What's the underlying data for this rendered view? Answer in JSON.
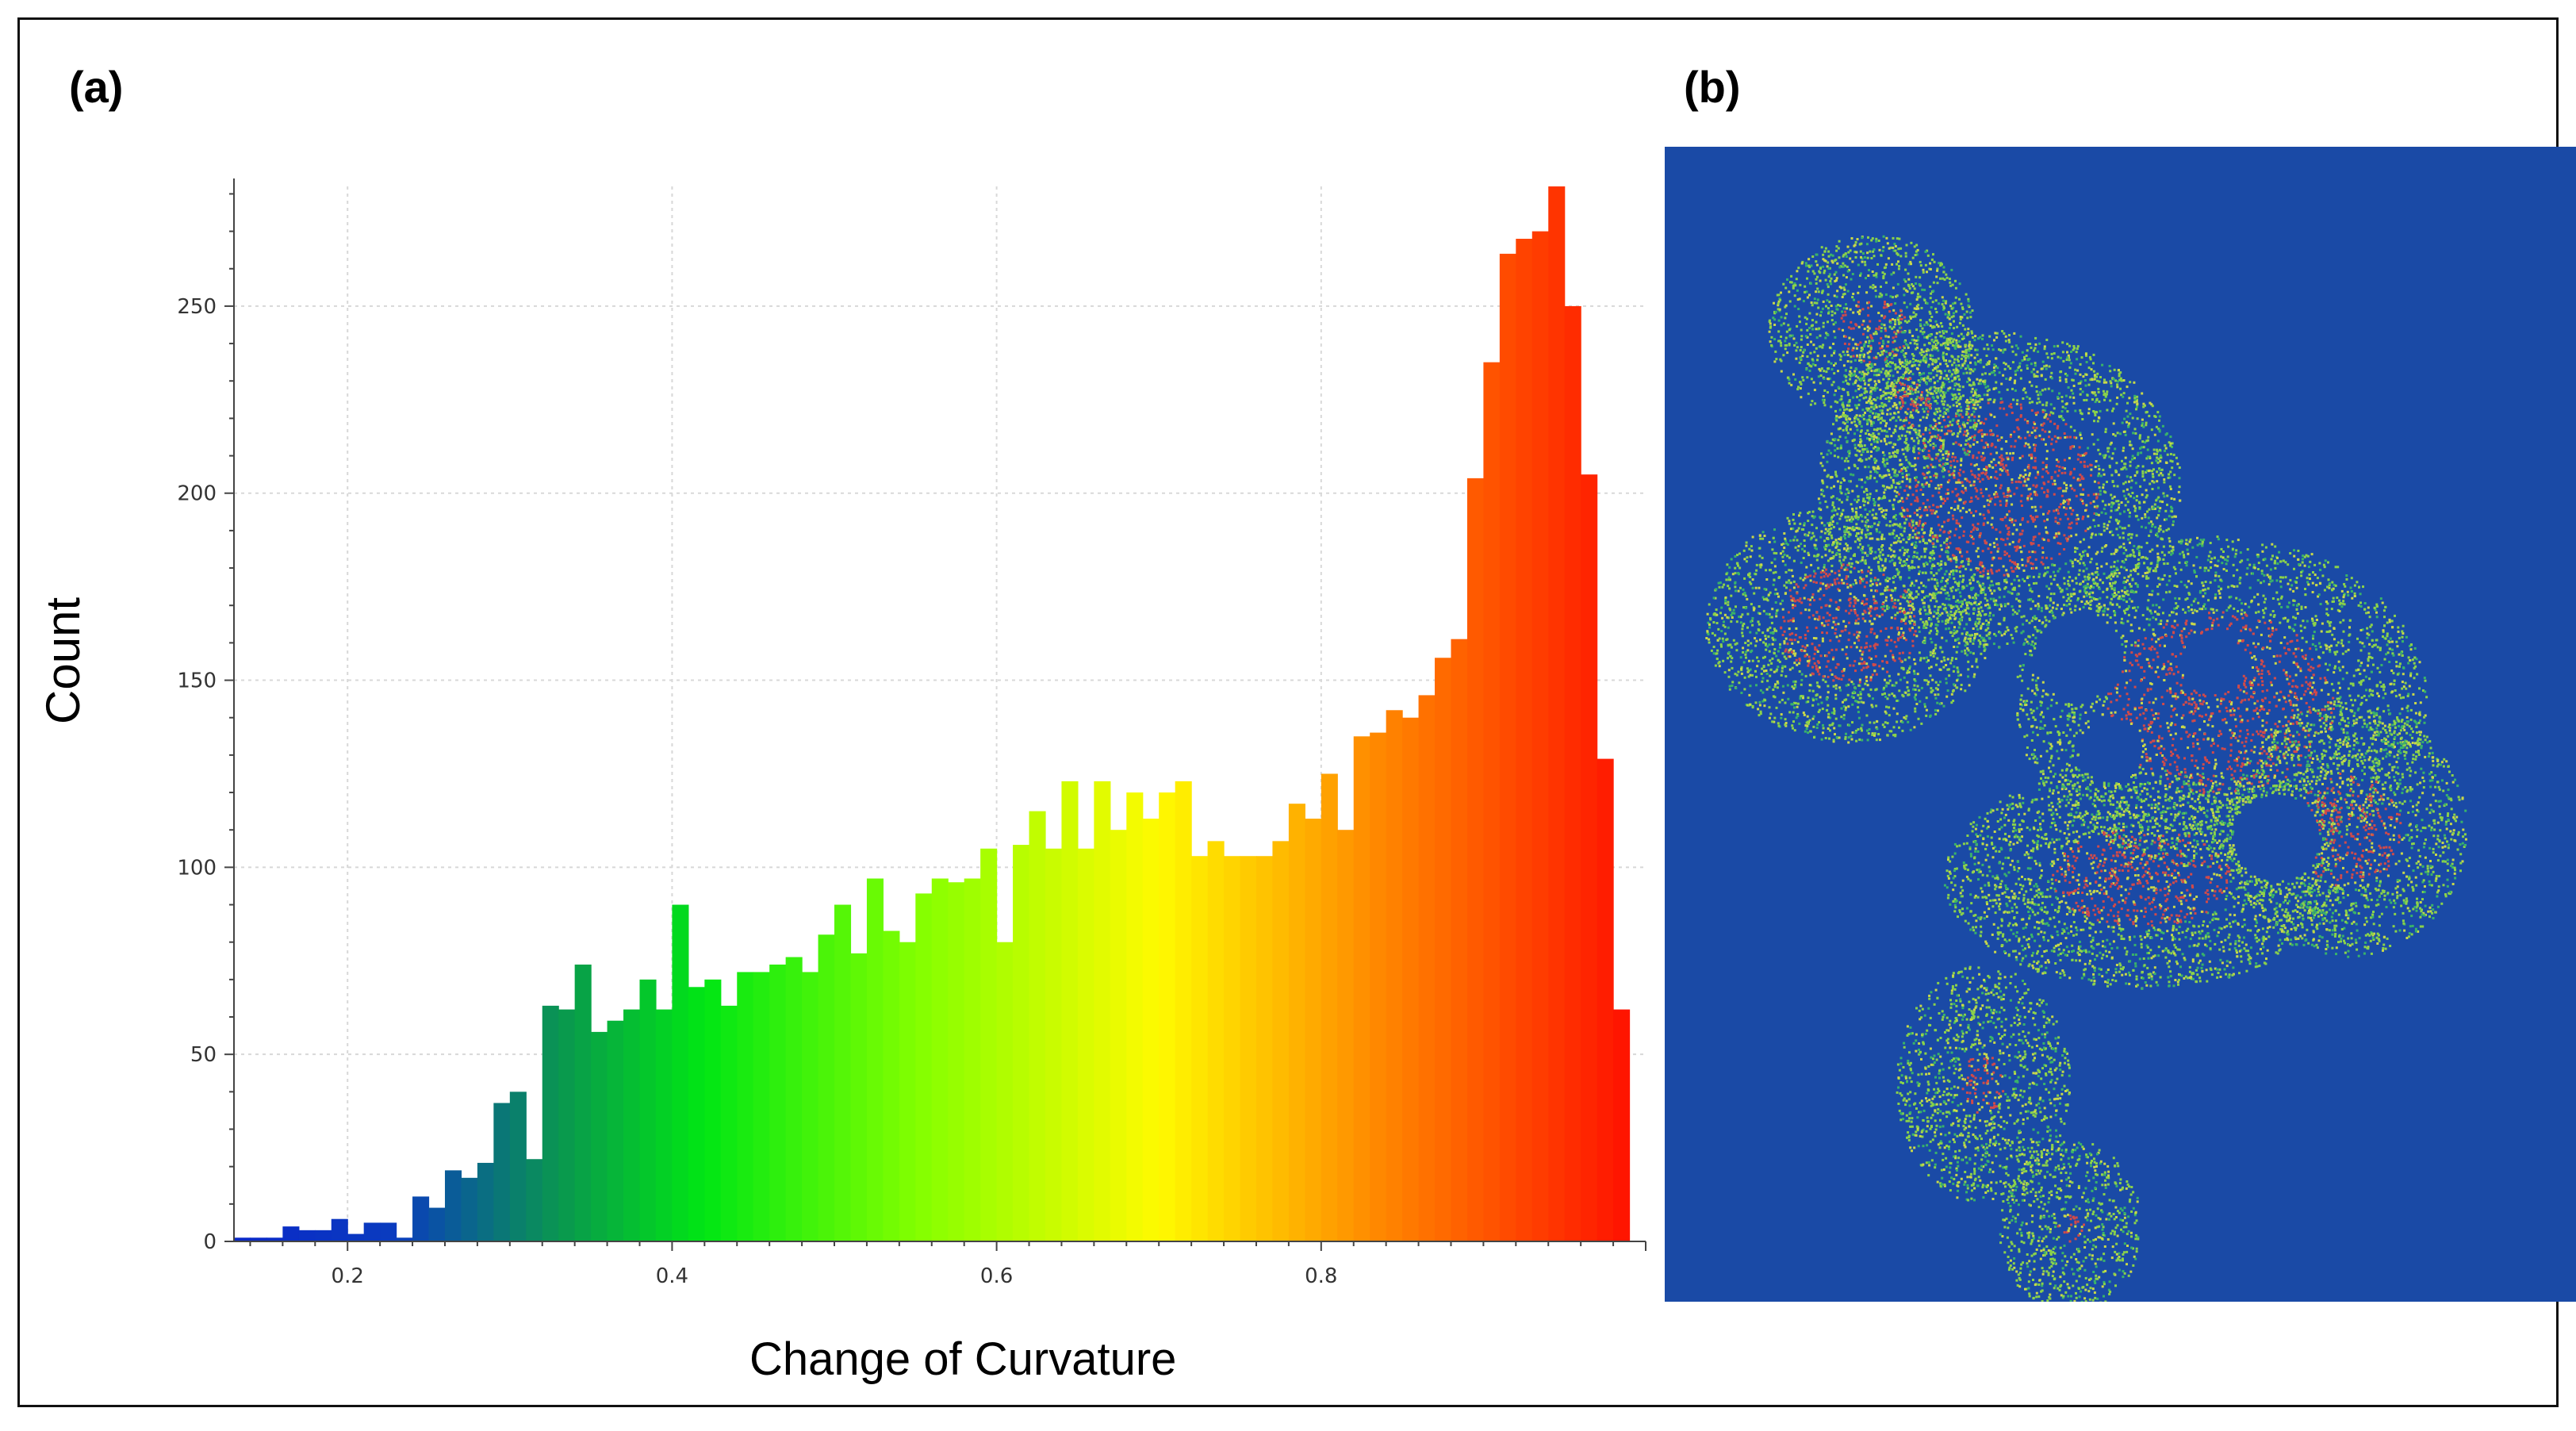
{
  "panels": {
    "a_label": "(a)",
    "b_label": "(b)"
  },
  "chart_data": {
    "type": "bar",
    "title": "",
    "xlabel": "Change of Curvature",
    "ylabel": "Count",
    "xlim": [
      0.13,
      1.0
    ],
    "ylim": [
      0,
      282
    ],
    "xticks": [
      0.2,
      0.4,
      0.6,
      0.8
    ],
    "xtick_labels": [
      "0.2",
      "0.4",
      "0.6",
      "0.8"
    ],
    "yticks": [
      0,
      50,
      100,
      150,
      200,
      250
    ],
    "ytick_labels": [
      "0",
      "50",
      "100",
      "150",
      "200",
      "250"
    ],
    "grid": true,
    "colormap": "blue-green-yellow-red",
    "bin_start": 0.13,
    "bin_width": 0.01,
    "values": [
      1,
      1,
      1,
      4,
      3,
      3,
      6,
      2,
      5,
      5,
      1,
      12,
      9,
      19,
      17,
      21,
      37,
      40,
      22,
      63,
      62,
      74,
      56,
      59,
      62,
      70,
      62,
      90,
      68,
      70,
      63,
      72,
      72,
      74,
      76,
      72,
      82,
      90,
      77,
      97,
      83,
      80,
      93,
      97,
      96,
      97,
      105,
      80,
      106,
      115,
      105,
      123,
      105,
      123,
      110,
      120,
      113,
      120,
      123,
      103,
      107,
      103,
      103,
      103,
      107,
      117,
      113,
      125,
      110,
      135,
      136,
      142,
      140,
      146,
      156,
      161,
      204,
      235,
      264,
      268,
      270,
      282,
      250,
      205,
      129,
      62
    ]
  },
  "map": {
    "background_color": "#1a4aa6",
    "point_colors": [
      "#d04a4a",
      "#8bd24a",
      "#c9d84a",
      "#39b26a"
    ]
  }
}
